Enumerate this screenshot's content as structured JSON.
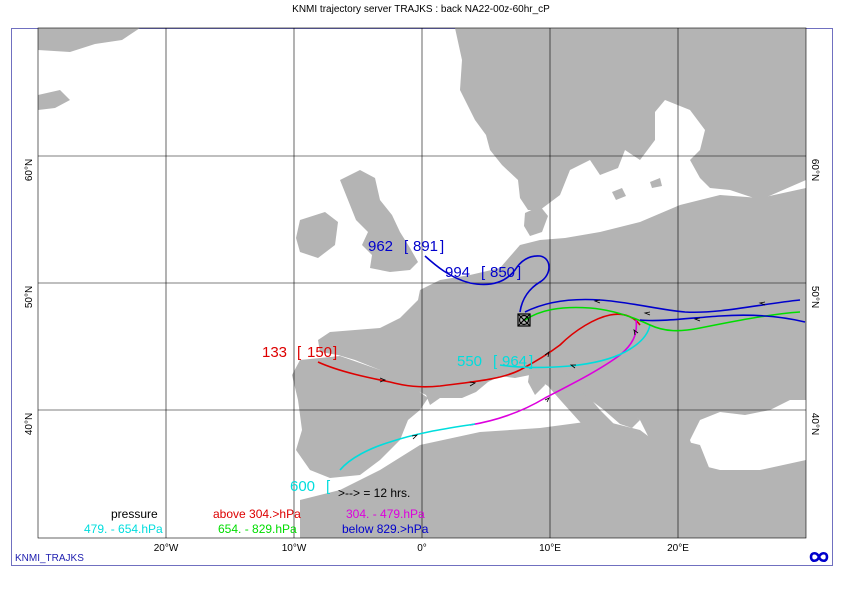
{
  "title": "KNMI trajectory server TRAJKS : back NA22-00z-60hr_cP",
  "footer": "KNMI_TRAJKS",
  "lon_labels": [
    "20°W",
    "10°W",
    "0°",
    "10°E",
    "20°E"
  ],
  "lat_labels": [
    "60°N",
    "50°N",
    "40°N"
  ],
  "trajectory_labels": [
    {
      "id": "t962",
      "start": "962",
      "end": "891",
      "color": "#0000cc"
    },
    {
      "id": "t994",
      "start": "994",
      "end": "850",
      "color": "#0000cc"
    },
    {
      "id": "t133",
      "start": "133",
      "end": "150",
      "color": "#dd0000"
    },
    {
      "id": "t550",
      "start": "550",
      "end": "964",
      "color": "#00dddd"
    },
    {
      "id": "t600",
      "start": "600",
      "end": "",
      "color": "#00dddd"
    }
  ],
  "legend": {
    "title": "pressure",
    "arrow_note": ">--> = 12 hrs.",
    "items": [
      {
        "label": "above 304.>hPa",
        "color": "#dd0000"
      },
      {
        "label": "304. -  479.hPa",
        "color": "#dd00dd"
      },
      {
        "label": "479. -  654.hPa",
        "color": "#00dddd"
      },
      {
        "label": "654. -  829.hPa",
        "color": "#00dd00"
      },
      {
        "label": "below 829.>hPa",
        "color": "#0000cc"
      }
    ]
  },
  "colors": {
    "land": "#b4b4b4",
    "grid": "#000000",
    "frame": "#7070c0"
  }
}
